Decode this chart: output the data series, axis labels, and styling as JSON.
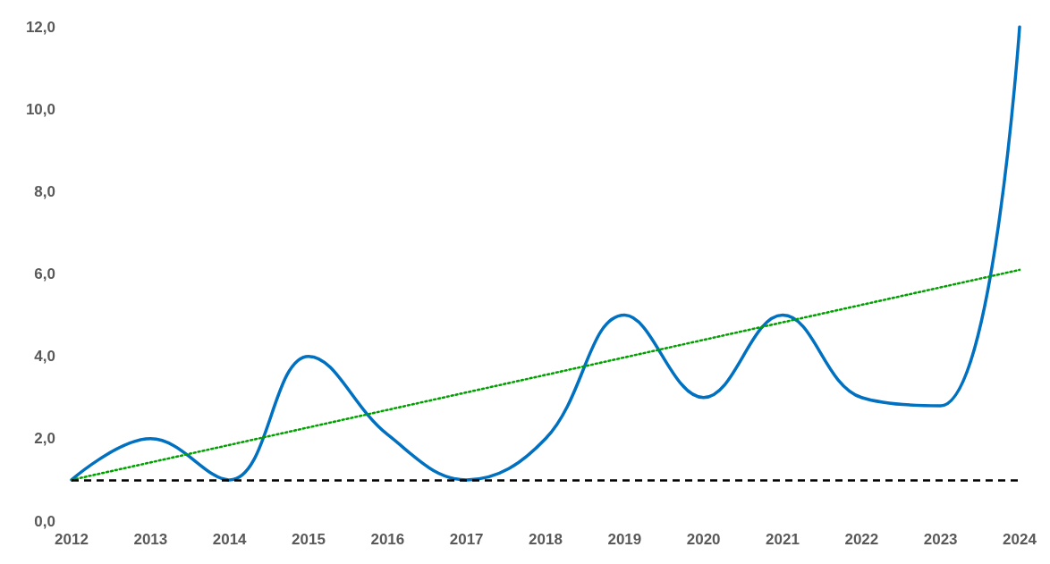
{
  "chart_data": {
    "type": "line",
    "x": [
      2012,
      2013,
      2014,
      2015,
      2016,
      2017,
      2018,
      2019,
      2020,
      2021,
      2022,
      2023,
      2024
    ],
    "series": [
      {
        "color": "#0070c0",
        "values": [
          1,
          2,
          1,
          4,
          2.1,
          1,
          2,
          5,
          3,
          5,
          3,
          2.8,
          12
        ]
      },
      {
        "color": "#00a000",
        "line_style": "dotted",
        "x": [
          2012,
          2024
        ],
        "values": [
          1,
          6.1
        ]
      }
    ],
    "ref_lines": [
      {
        "axis": "y",
        "value": 1,
        "color": "#000000",
        "line_style": "dashed"
      }
    ],
    "xlim": [
      2012,
      2024
    ],
    "xticks": [
      2012,
      2013,
      2014,
      2015,
      2016,
      2017,
      2018,
      2019,
      2020,
      2021,
      2022,
      2023,
      2024
    ],
    "ylim": [
      0,
      12
    ],
    "yticks": [
      {
        "value": 0,
        "label": "0,0"
      },
      {
        "value": 2,
        "label": "2,0"
      },
      {
        "value": 4,
        "label": "4,0"
      },
      {
        "value": 6,
        "label": "6,0"
      },
      {
        "value": 8,
        "label": "8,0"
      },
      {
        "value": 10,
        "label": "10,0"
      },
      {
        "value": 12,
        "label": "12,0"
      }
    ],
    "grid": false,
    "marker": "none"
  }
}
